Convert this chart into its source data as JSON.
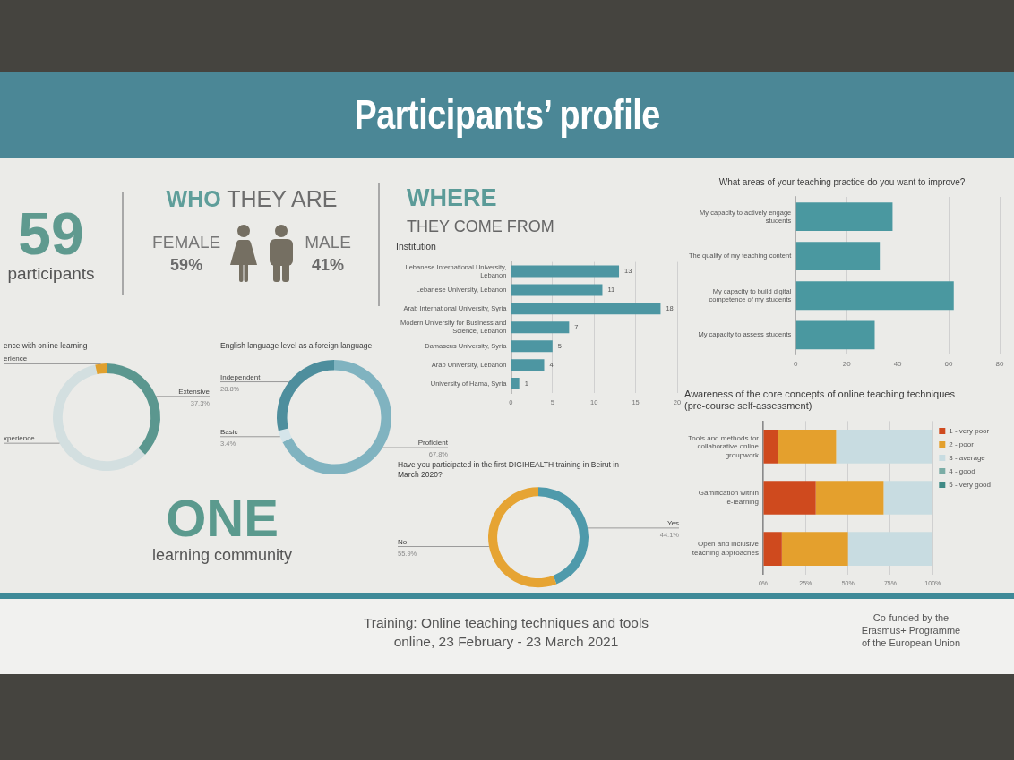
{
  "chart_data": [
    {
      "type": "other",
      "title": "Participants’ profile"
    },
    {
      "type": "other",
      "title": "59",
      "subtitle": "participants"
    },
    {
      "type": "other",
      "title": "WHO THEY ARE",
      "categories": [
        "FEMALE",
        "MALE"
      ],
      "value_labels": [
        "59%",
        "41%"
      ]
    },
    {
      "type": "other",
      "title": "WHERE",
      "subtitle": "THEY COME FROM"
    },
    {
      "type": "bar",
      "orientation": "horizontal",
      "title": "Institution",
      "categories": [
        "Lebanese International University, Lebanon",
        "Lebanese University, Lebanon",
        "Arab International University, Syria",
        "Modern University for Business and Science, Lebanon",
        "Damascus University, Syria",
        "Arab University, Lebanon",
        "University of Hama, Syria"
      ],
      "values": [
        13,
        11,
        18,
        7,
        5,
        4,
        1
      ],
      "color": "#4d96a2",
      "xlim": [
        0,
        20
      ],
      "xticks": [
        0,
        5,
        10,
        15,
        20
      ],
      "grid": "x",
      "data_labels": true
    },
    {
      "type": "bar",
      "orientation": "horizontal",
      "title": "What areas of your teaching practice do you want to improve?",
      "categories": [
        "My capacity to actively engage students",
        "The quality of my teaching content",
        "My capacity to build digital competence of my students",
        "My capacity to assess students"
      ],
      "values": [
        38,
        33,
        62,
        31
      ],
      "color": "#4a98a0",
      "xlim": [
        0,
        80
      ],
      "xticks": [
        0,
        20,
        40,
        60,
        80
      ],
      "grid": "x"
    },
    {
      "type": "donut",
      "title": "ence with online learning",
      "categories": [
        "Extensive",
        "xperience",
        "erience"
      ],
      "values": [
        37.3,
        59.3,
        3.4
      ],
      "colors": [
        "#5b978f",
        "#d3dfe0",
        "#e0a02e"
      ],
      "value_labels": [
        "37.3%",
        null,
        null
      ]
    },
    {
      "type": "donut",
      "title": "English language level as a foreign language",
      "categories": [
        "Proficient",
        "Basic",
        "Independent"
      ],
      "values": [
        67.8,
        3.4,
        28.8
      ],
      "colors": [
        "#80b3c0",
        "#d5e5ea",
        "#4e8e9d"
      ],
      "value_labels": [
        "67.8%",
        "3.4%",
        "28.8%"
      ]
    },
    {
      "type": "bar",
      "orientation": "horizontal",
      "stacked": true,
      "title": "Awareness of the core concepts of online teaching techniques (pre-course self-assessment)",
      "categories": [
        "Tools and methods for collaborative online groupwork",
        "Gamification within e-learning",
        "Open and inclusive teaching approaches"
      ],
      "series": [
        {
          "name": "1 - very poor",
          "color": "#cf4a1e",
          "values": [
            9,
            31,
            11
          ]
        },
        {
          "name": "2 - poor",
          "color": "#e4a02d",
          "values": [
            34,
            40,
            39
          ]
        },
        {
          "name": "3 - average",
          "color": "#c8dce1",
          "values": [
            57,
            29,
            50
          ]
        },
        {
          "name": "4 - good",
          "color": "#7aaca5",
          "values": [
            0,
            0,
            0
          ]
        },
        {
          "name": "5 - very good",
          "color": "#3f8a85",
          "values": [
            0,
            0,
            0
          ]
        }
      ],
      "xlim": [
        0,
        100
      ],
      "xticks": [
        {
          "value": 0,
          "label": "0%"
        },
        {
          "value": 25,
          "label": "25%"
        },
        {
          "value": 50,
          "label": "50%"
        },
        {
          "value": 75,
          "label": "75%"
        },
        {
          "value": 100,
          "label": "100%"
        }
      ],
      "grid": "x",
      "legend": "right"
    },
    {
      "type": "donut",
      "title": "Have you participated in the first DIGIHEALTH training in Beirut in March 2020?",
      "categories": [
        "Yes",
        "No"
      ],
      "values": [
        44.1,
        55.9
      ],
      "colors": [
        "#4f9aab",
        "#e6a433"
      ],
      "value_labels": [
        "44.1%",
        "55.9%"
      ]
    },
    {
      "type": "other",
      "title": "ONE",
      "subtitle": "learning community"
    },
    {
      "type": "other",
      "annotations": [
        "Training: Online teaching techniques and tools online, 23 February - 23 March 2021",
        "Co-funded by the Erasmus+ Programme of the European Union"
      ]
    }
  ]
}
